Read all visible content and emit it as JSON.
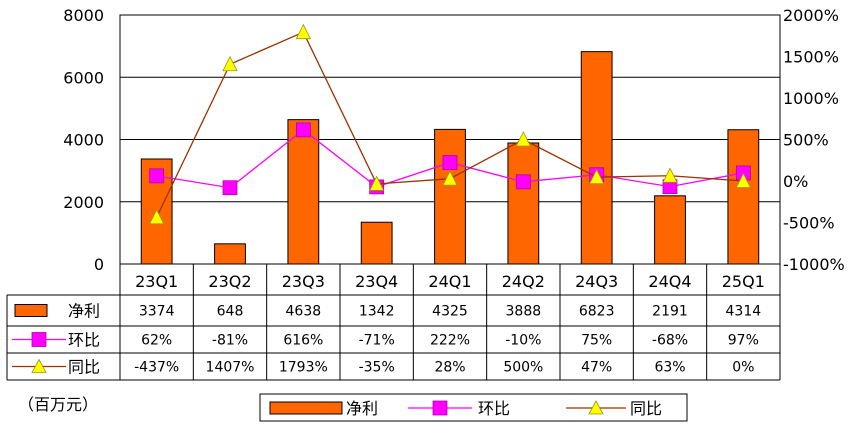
{
  "chart_data": {
    "type": "bar",
    "categories": [
      "23Q1",
      "23Q2",
      "23Q3",
      "23Q4",
      "24Q1",
      "24Q2",
      "24Q3",
      "24Q4",
      "25Q1"
    ],
    "series": [
      {
        "name": "净利",
        "type": "bar",
        "axis": "left",
        "color": "#FF6600",
        "values": [
          3374,
          648,
          4638,
          1342,
          4325,
          3888,
          6823,
          2191,
          4314
        ],
        "labels": [
          "3374",
          "648",
          "4638",
          "1342",
          "4325",
          "3888",
          "6823",
          "2191",
          "4314"
        ]
      },
      {
        "name": "环比",
        "type": "line",
        "axis": "right",
        "color": "#FF00FF",
        "marker": "square",
        "values": [
          62,
          -81,
          616,
          -71,
          222,
          -10,
          75,
          -68,
          97
        ],
        "labels": [
          "62%",
          "-81%",
          "616%",
          "-71%",
          "222%",
          "-10%",
          "75%",
          "-68%",
          "97%"
        ]
      },
      {
        "name": "同比",
        "type": "line",
        "axis": "right",
        "color": "#993300",
        "marker": "triangle",
        "marker_color": "#FFFF00",
        "values": [
          -437,
          1407,
          1793,
          -35,
          28,
          500,
          47,
          63,
          0
        ],
        "labels": [
          "-437%",
          "1407%",
          "1793%",
          "-35%",
          "28%",
          "500%",
          "47%",
          "63%",
          "0%"
        ]
      }
    ],
    "ylim": [
      0,
      8000
    ],
    "yticks": [
      "0",
      "2000",
      "4000",
      "6000",
      "8000"
    ],
    "y2lim": [
      -1000,
      2000
    ],
    "y2ticks": [
      "-1000%",
      "-500%",
      "0%",
      "500%",
      "1000%",
      "1500%",
      "2000%"
    ],
    "unit": "（百万元）",
    "grid": true,
    "legend": "bottom"
  }
}
